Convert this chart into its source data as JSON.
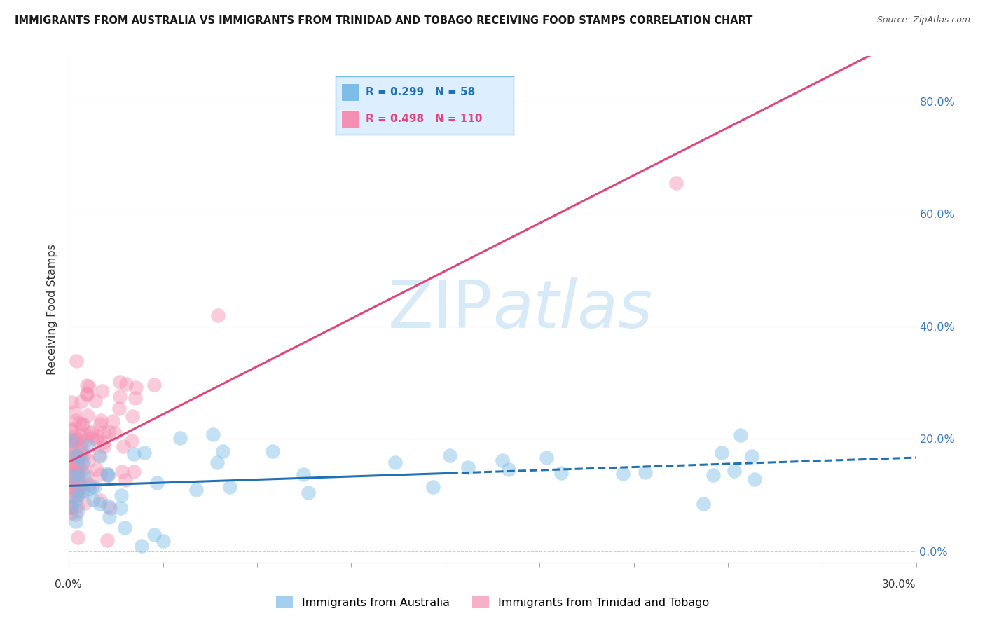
{
  "title": "IMMIGRANTS FROM AUSTRALIA VS IMMIGRANTS FROM TRINIDAD AND TOBAGO RECEIVING FOOD STAMPS CORRELATION CHART",
  "source": "Source: ZipAtlas.com",
  "ylabel": "Receiving Food Stamps",
  "ytick_vals": [
    0.0,
    0.2,
    0.4,
    0.6,
    0.8
  ],
  "xmin": 0.0,
  "xmax": 0.3,
  "ymin": -0.02,
  "ymax": 0.88,
  "australia_R": 0.299,
  "australia_N": 58,
  "tt_R": 0.498,
  "tt_N": 110,
  "color_australia": "#7dbde8",
  "color_tt": "#f48fb1",
  "trend_australia_color": "#2171b5",
  "trend_tt_color": "#e0457b",
  "watermark_color": "#d6eaf8",
  "background": "#ffffff",
  "legend_bg": "#ddeeff",
  "legend_border": "#7dbde8"
}
